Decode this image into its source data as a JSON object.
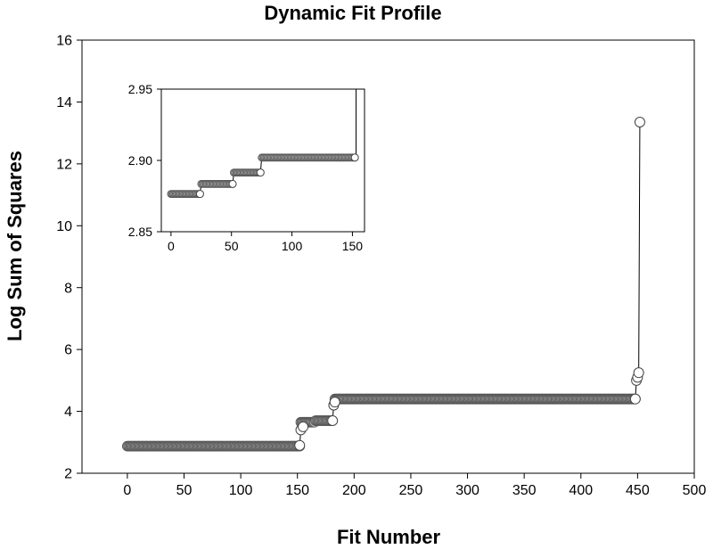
{
  "chart_data": [
    {
      "id": "main",
      "type": "scatter",
      "title": "Dynamic Fit Profile",
      "xlabel": "Fit Number",
      "ylabel": "Log Sum of Squares",
      "xlim": [
        -40,
        500
      ],
      "ylim": [
        2,
        16
      ],
      "xticks": [
        0,
        50,
        100,
        150,
        200,
        250,
        300,
        350,
        400,
        450,
        500
      ],
      "yticks": [
        2,
        4,
        6,
        8,
        10,
        12,
        14,
        16
      ],
      "grid": false,
      "levels": [
        {
          "x_start": 0,
          "x_end": 152,
          "y": 2.875
        },
        {
          "x_start": 153,
          "x_end": 165,
          "y": 3.65
        },
        {
          "x_start": 166,
          "x_end": 180,
          "y": 3.7
        },
        {
          "x_start": 183,
          "x_end": 448,
          "y": 4.4
        }
      ],
      "points": [
        {
          "x": 152,
          "y": 2.9
        },
        {
          "x": 153,
          "y": 3.4
        },
        {
          "x": 155,
          "y": 3.5
        },
        {
          "x": 181,
          "y": 3.7
        },
        {
          "x": 182,
          "y": 4.2
        },
        {
          "x": 183,
          "y": 4.3
        },
        {
          "x": 448,
          "y": 4.4
        },
        {
          "x": 449,
          "y": 5.0
        },
        {
          "x": 450,
          "y": 5.1
        },
        {
          "x": 451,
          "y": 5.25
        },
        {
          "x": 452,
          "y": 13.35
        }
      ]
    },
    {
      "id": "inset",
      "type": "scatter",
      "xlim": [
        -8,
        160
      ],
      "ylim": [
        2.85,
        2.95
      ],
      "xticks": [
        0,
        50,
        100,
        150
      ],
      "xtick_labels": [
        "0",
        "50",
        "100",
        "150"
      ],
      "yticks": [
        2.85,
        2.9,
        2.95
      ],
      "ytick_labels": [
        "2.85",
        "2.90",
        "2.95"
      ],
      "grid": false,
      "levels": [
        {
          "x_start": 0,
          "x_end": 24,
          "y": 2.8765
        },
        {
          "x_start": 25,
          "x_end": 51,
          "y": 2.8835
        },
        {
          "x_start": 52,
          "x_end": 74,
          "y": 2.8915
        },
        {
          "x_start": 75,
          "x_end": 152,
          "y": 2.902
        }
      ],
      "points": [
        {
          "x": 24,
          "y": 2.8765
        },
        {
          "x": 51,
          "y": 2.8835
        },
        {
          "x": 74,
          "y": 2.8915
        },
        {
          "x": 152,
          "y": 2.902
        }
      ],
      "vertical_line_x": 153
    }
  ]
}
